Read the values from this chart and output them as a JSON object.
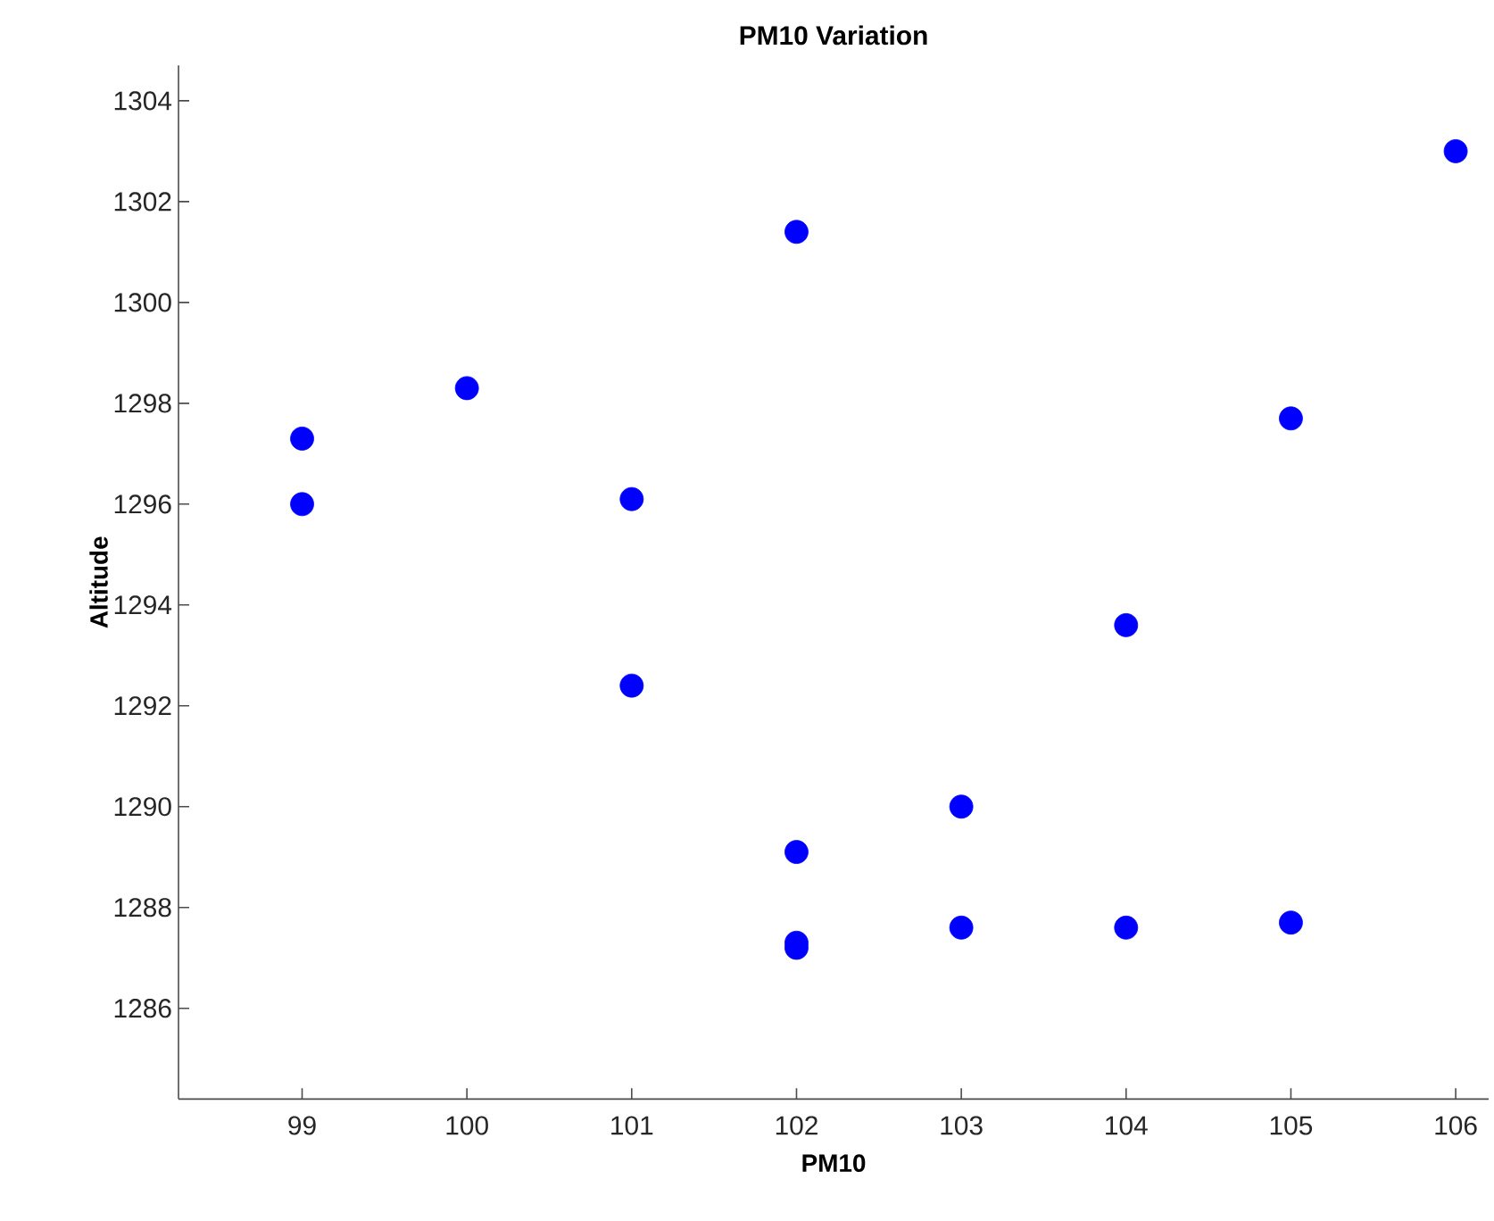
{
  "chart_data": {
    "type": "scatter",
    "title": "PM10 Variation",
    "xlabel": "PM10",
    "ylabel": "Altitude",
    "x": [
      99,
      99,
      100,
      101,
      101,
      102,
      102,
      102,
      102,
      103,
      103,
      104,
      104,
      105,
      105,
      106
    ],
    "values": [
      1297.3,
      1296.0,
      1298.3,
      1296.1,
      1292.4,
      1301.4,
      1289.1,
      1287.3,
      1287.2,
      1290.0,
      1287.6,
      1293.6,
      1287.6,
      1297.7,
      1287.7,
      1303.0
    ],
    "color": "#0000ff",
    "marker": "circle",
    "xlim": [
      98.25,
      106.2
    ],
    "ylim": [
      1284.2,
      1304.7
    ],
    "xticks": [
      99,
      100,
      101,
      102,
      103,
      104,
      105,
      106
    ],
    "yticks": [
      1286,
      1288,
      1290,
      1292,
      1294,
      1296,
      1298,
      1300,
      1302,
      1304
    ],
    "grid": false
  }
}
